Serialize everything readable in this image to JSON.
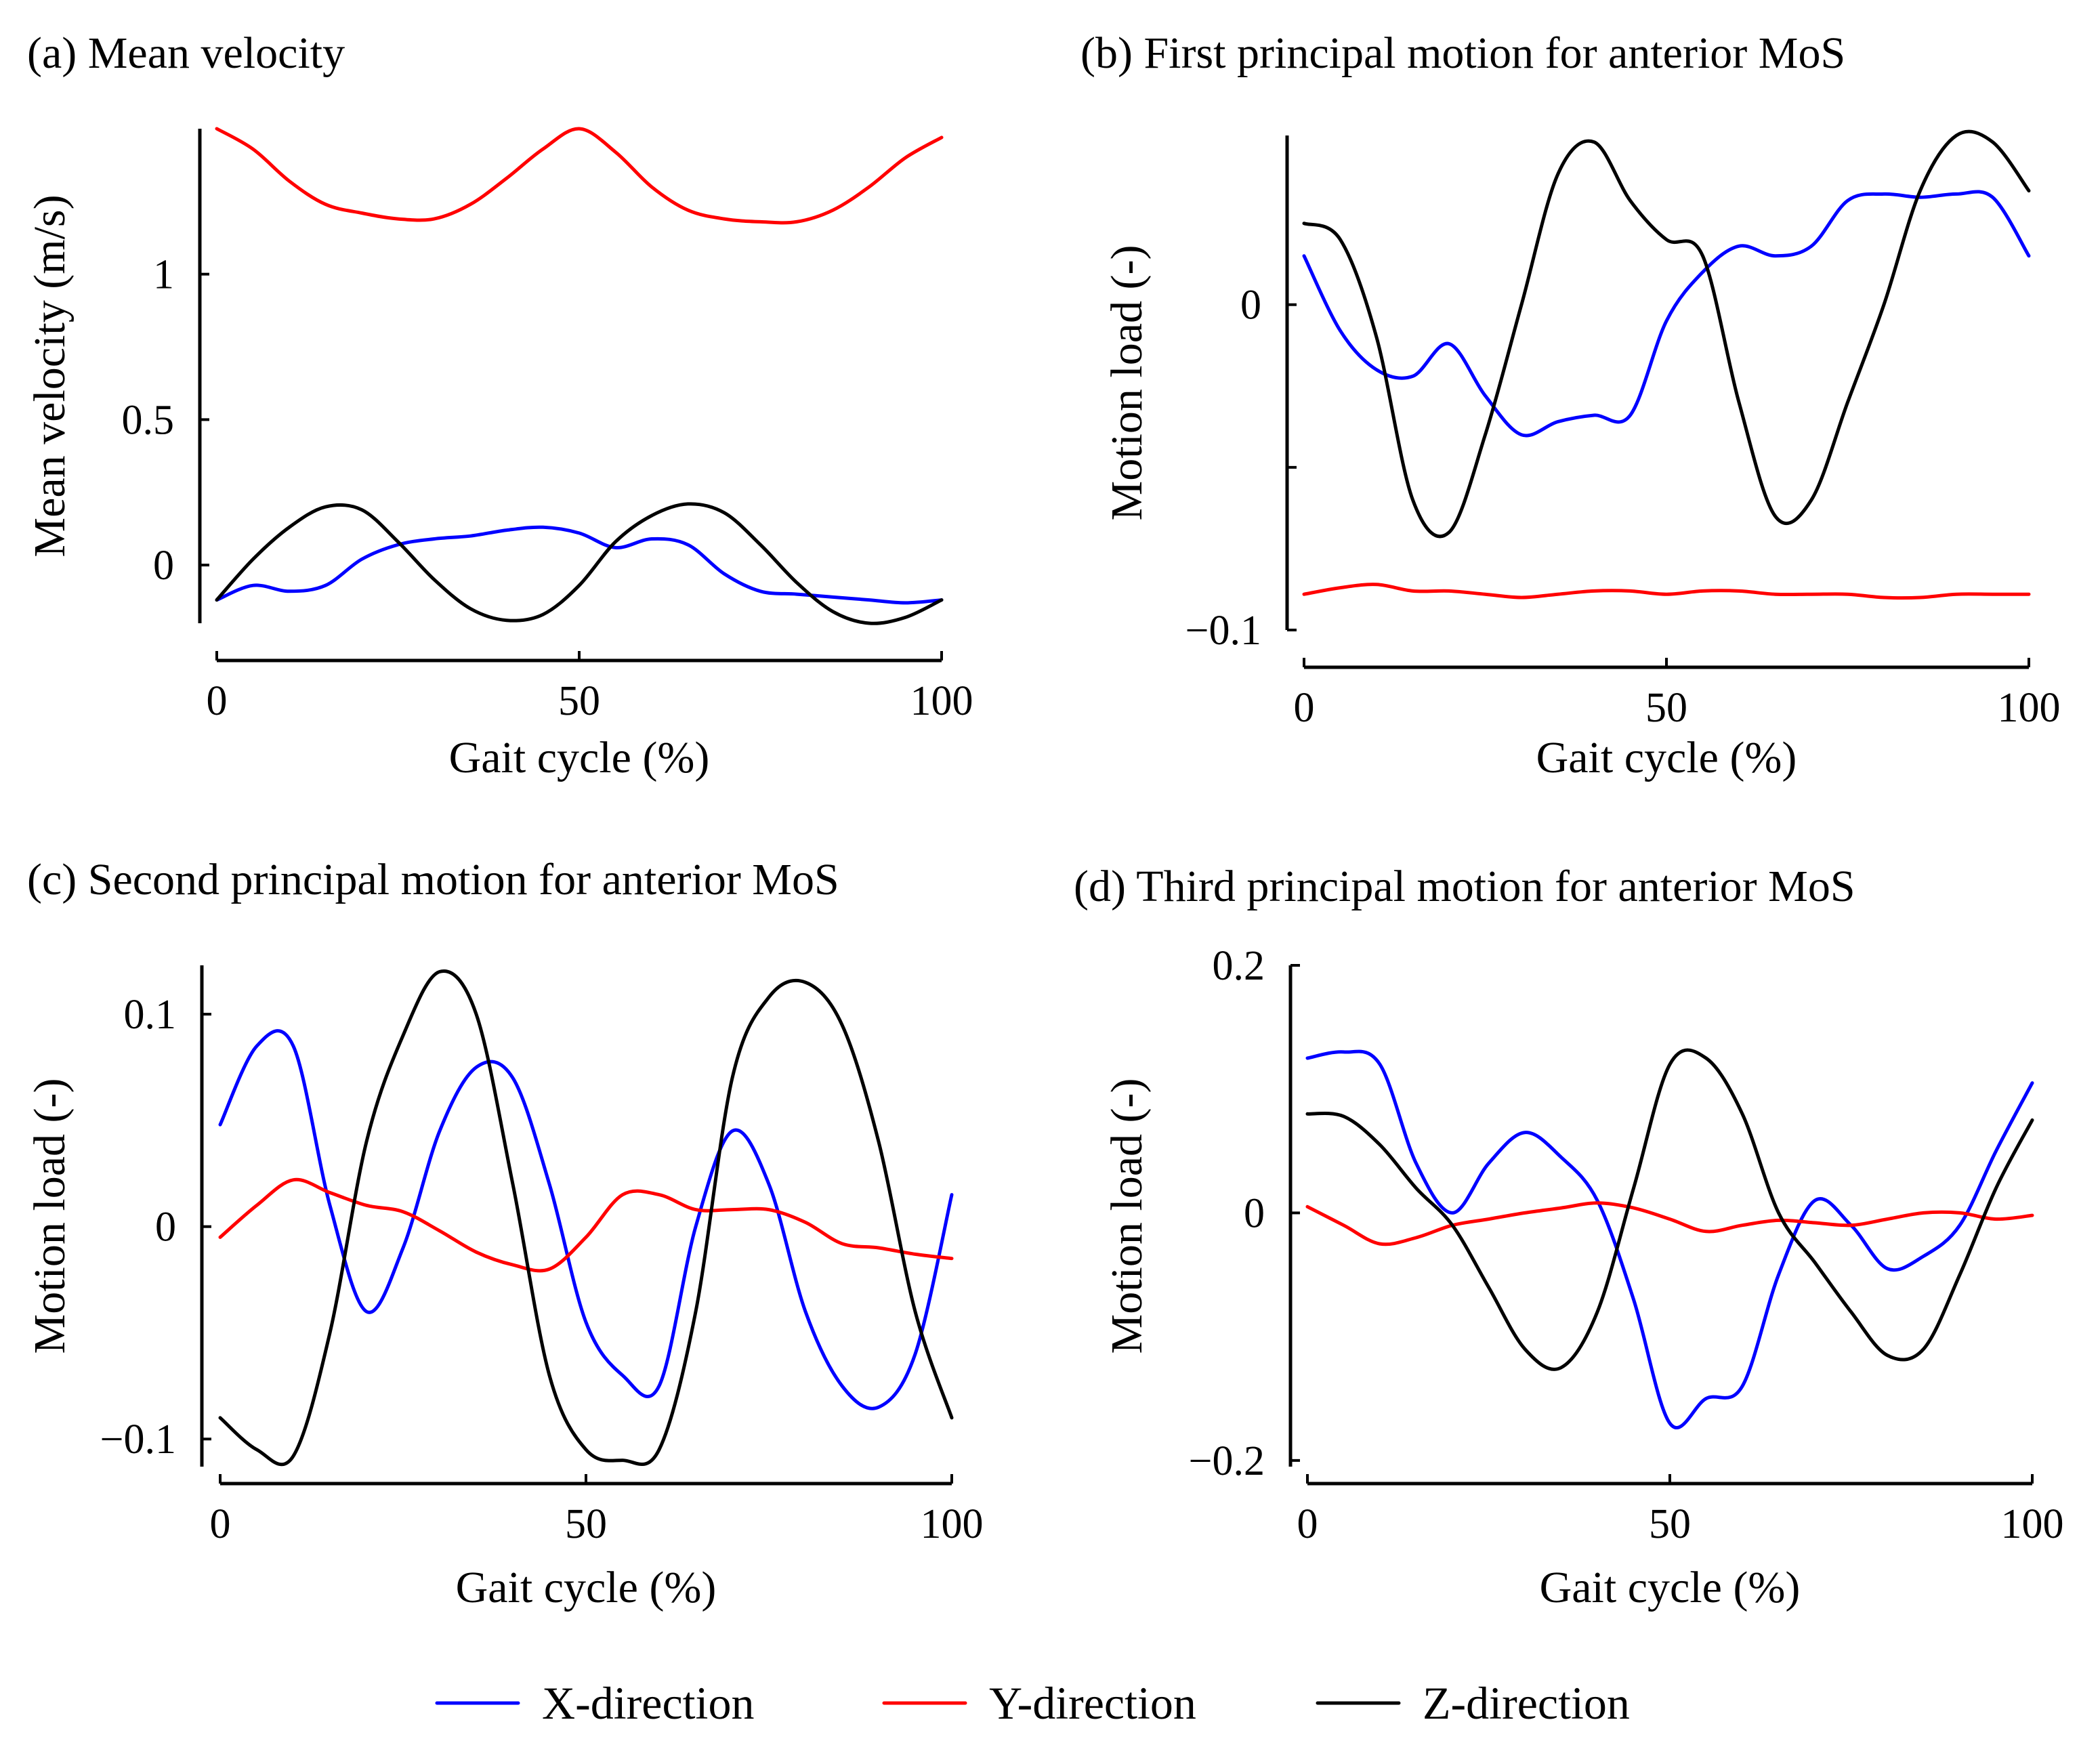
{
  "colors": {
    "x": "#0000ff",
    "y": "#ff0000",
    "z": "#000000"
  },
  "legend": [
    {
      "key": "x",
      "label": "X-direction"
    },
    {
      "key": "y",
      "label": "Y-direction"
    },
    {
      "key": "z",
      "label": "Z-direction"
    }
  ],
  "chart_data": [
    {
      "type": "line",
      "title": "(a) Mean velocity",
      "xlabel": "Gait cycle (%)",
      "ylabel": "Mean velocity (m/s)",
      "xlim": [
        0,
        100
      ],
      "ylim": [
        -0.2,
        1.5
      ],
      "xticks": [
        0,
        50,
        100
      ],
      "yticks": [
        0,
        0.5,
        1
      ],
      "ytick_labels": [
        "0",
        "0.5",
        "1"
      ],
      "x": [
        0,
        5,
        10,
        15,
        20,
        25,
        30,
        35,
        40,
        45,
        50,
        55,
        60,
        65,
        70,
        75,
        80,
        85,
        90,
        95,
        100
      ],
      "series": [
        {
          "name": "X-direction",
          "key": "x",
          "values": [
            -0.12,
            -0.07,
            -0.09,
            -0.07,
            0.02,
            0.07,
            0.09,
            0.1,
            0.12,
            0.13,
            0.11,
            0.06,
            0.09,
            0.07,
            -0.03,
            -0.09,
            -0.1,
            -0.11,
            -0.12,
            -0.13,
            -0.12
          ]
        },
        {
          "name": "Y-direction",
          "key": "y",
          "values": [
            1.5,
            1.43,
            1.32,
            1.24,
            1.21,
            1.19,
            1.19,
            1.24,
            1.33,
            1.43,
            1.5,
            1.42,
            1.3,
            1.22,
            1.19,
            1.18,
            1.18,
            1.22,
            1.3,
            1.4,
            1.47
          ]
        },
        {
          "name": "Z-direction",
          "key": "z",
          "values": [
            -0.12,
            0.02,
            0.13,
            0.2,
            0.19,
            0.08,
            -0.05,
            -0.15,
            -0.19,
            -0.17,
            -0.07,
            0.08,
            0.17,
            0.21,
            0.18,
            0.07,
            -0.06,
            -0.16,
            -0.2,
            -0.18,
            -0.12
          ]
        }
      ]
    },
    {
      "type": "line",
      "title": "(b) First principal motion for anterior MoS",
      "xlabel": "Gait cycle (%)",
      "ylabel": "Motion load (-)",
      "xlim": [
        0,
        100
      ],
      "ylim": [
        -0.1,
        0.052
      ],
      "xticks": [
        0,
        50,
        100
      ],
      "yticks": [
        -0.1,
        -0.05,
        0
      ],
      "ytick_labels": [
        "−0.1",
        "",
        "0"
      ],
      "x": [
        0,
        5,
        10,
        15,
        20,
        25,
        30,
        35,
        40,
        45,
        50,
        55,
        60,
        65,
        70,
        75,
        80,
        85,
        90,
        95,
        100
      ],
      "series": [
        {
          "name": "X-direction",
          "key": "x",
          "values": [
            0.015,
            -0.008,
            -0.02,
            -0.022,
            -0.012,
            -0.028,
            -0.04,
            -0.036,
            -0.034,
            -0.034,
            -0.005,
            0.01,
            0.018,
            0.015,
            0.018,
            0.032,
            0.034,
            0.033,
            0.034,
            0.033,
            0.015
          ]
        },
        {
          "name": "Y-direction",
          "key": "y",
          "values": [
            -0.089,
            -0.087,
            -0.086,
            -0.088,
            -0.088,
            -0.089,
            -0.09,
            -0.089,
            -0.088,
            -0.088,
            -0.089,
            -0.088,
            -0.088,
            -0.089,
            -0.089,
            -0.089,
            -0.09,
            -0.09,
            -0.089,
            -0.089,
            -0.089
          ]
        },
        {
          "name": "Z-direction",
          "key": "z",
          "values": [
            0.025,
            0.02,
            -0.01,
            -0.06,
            -0.07,
            -0.04,
            0.0,
            0.04,
            0.05,
            0.032,
            0.02,
            0.015,
            -0.03,
            -0.065,
            -0.06,
            -0.03,
            0.0,
            0.035,
            0.052,
            0.05,
            0.035
          ]
        }
      ]
    },
    {
      "type": "line",
      "title": "(c) Second principal motion for anterior MoS",
      "xlabel": "Gait cycle (%)",
      "ylabel": "Motion load (-)",
      "xlim": [
        0,
        100
      ],
      "ylim": [
        -0.113,
        0.123
      ],
      "xticks": [
        0,
        50,
        100
      ],
      "yticks": [
        -0.1,
        0,
        0.1
      ],
      "ytick_labels": [
        "−0.1",
        "0",
        "0.1"
      ],
      "x": [
        0,
        5,
        10,
        15,
        20,
        25,
        30,
        35,
        40,
        45,
        50,
        55,
        60,
        65,
        70,
        75,
        80,
        85,
        90,
        95,
        100
      ],
      "series": [
        {
          "name": "X-direction",
          "key": "x",
          "values": [
            0.048,
            0.085,
            0.085,
            0.01,
            -0.04,
            -0.01,
            0.045,
            0.075,
            0.07,
            0.02,
            -0.045,
            -0.07,
            -0.075,
            0.0,
            0.045,
            0.02,
            -0.04,
            -0.075,
            -0.085,
            -0.06,
            0.015
          ]
        },
        {
          "name": "Y-direction",
          "key": "y",
          "values": [
            -0.005,
            0.01,
            0.022,
            0.016,
            0.01,
            0.007,
            -0.002,
            -0.012,
            -0.018,
            -0.02,
            -0.005,
            0.015,
            0.015,
            0.008,
            0.008,
            0.008,
            0.002,
            -0.008,
            -0.01,
            -0.013,
            -0.015
          ]
        },
        {
          "name": "Z-direction",
          "key": "z",
          "values": [
            -0.09,
            -0.105,
            -0.108,
            -0.05,
            0.04,
            0.09,
            0.12,
            0.1,
            0.02,
            -0.07,
            -0.105,
            -0.11,
            -0.105,
            -0.04,
            0.07,
            0.108,
            0.115,
            0.095,
            0.04,
            -0.04,
            -0.09
          ]
        }
      ]
    },
    {
      "type": "line",
      "title": "(d) Third principal motion for anterior MoS",
      "xlabel": "Gait cycle (%)",
      "ylabel": "Motion load (-)",
      "xlim": [
        0,
        100
      ],
      "ylim": [
        -0.205,
        0.2
      ],
      "xticks": [
        0,
        50,
        100
      ],
      "yticks": [
        -0.2,
        0,
        0.2
      ],
      "ytick_labels": [
        "−0.2",
        "0",
        "0.2"
      ],
      "x": [
        0,
        5,
        10,
        15,
        20,
        25,
        30,
        35,
        40,
        45,
        50,
        55,
        60,
        65,
        70,
        75,
        80,
        85,
        90,
        95,
        100
      ],
      "series": [
        {
          "name": "X-direction",
          "key": "x",
          "values": [
            0.125,
            0.13,
            0.12,
            0.04,
            0.0,
            0.04,
            0.065,
            0.045,
            0.01,
            -0.07,
            -0.17,
            -0.15,
            -0.14,
            -0.05,
            0.01,
            -0.01,
            -0.045,
            -0.035,
            -0.01,
            0.05,
            0.105
          ]
        },
        {
          "name": "Y-direction",
          "key": "y",
          "values": [
            0.005,
            -0.01,
            -0.025,
            -0.02,
            -0.01,
            -0.005,
            0.0,
            0.004,
            0.008,
            0.004,
            -0.005,
            -0.015,
            -0.01,
            -0.006,
            -0.008,
            -0.01,
            -0.005,
            0.0,
            0.0,
            -0.005,
            -0.002
          ]
        },
        {
          "name": "Z-direction",
          "key": "z",
          "values": [
            0.08,
            0.078,
            0.055,
            0.02,
            -0.01,
            -0.06,
            -0.11,
            -0.125,
            -0.08,
            0.02,
            0.12,
            0.125,
            0.08,
            0.0,
            -0.04,
            -0.08,
            -0.115,
            -0.11,
            -0.05,
            0.02,
            0.075
          ]
        }
      ]
    }
  ]
}
